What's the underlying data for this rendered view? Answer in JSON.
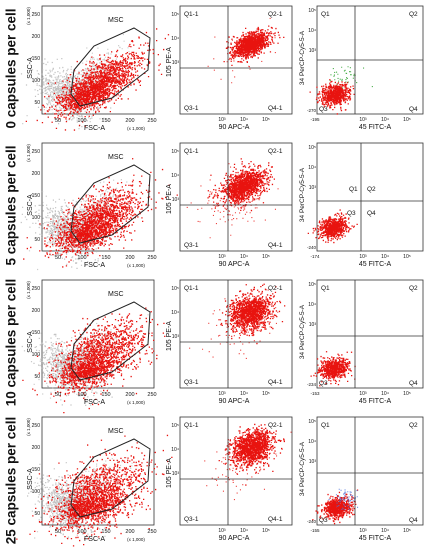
{
  "rows": [
    {
      "label": "0 capsules per cell"
    },
    {
      "label": "5 capsules per cell"
    },
    {
      "label": "10 capsules per cell"
    },
    {
      "label": "25 capsules per cell"
    }
  ],
  "msc_panel": {
    "gate_label": "MSC",
    "y_axis": "SSC-A",
    "x_axis": "FSC-A",
    "x_ticks": [
      "50",
      "100",
      "150",
      "200",
      "250"
    ],
    "y_ticks": [
      "50",
      "100",
      "150",
      "200",
      "250"
    ],
    "y_multiplier": "(x 1,000)",
    "x_multiplier": "(x 1,000)"
  },
  "pe_apc_panel": {
    "y_axis": "105 PE-A",
    "x_axis": "90 APC-A",
    "quadrants": [
      "Q1-1",
      "Q2-1",
      "Q3-1",
      "Q4-1"
    ],
    "x_ticks": [
      "10³",
      "10⁴",
      "10⁵"
    ],
    "y_ticks": [
      "10³",
      "10⁴",
      "10⁵"
    ]
  },
  "percp_fitc_panel": {
    "y_axis": "34 PerCP-Cy5-5-A",
    "x_axis": "45 FITC-A",
    "quadrants": [
      "Q1",
      "Q2",
      "Q3",
      "Q4"
    ],
    "x_ticks": [
      "10³",
      "10⁴",
      "10⁵"
    ],
    "y_ticks": [
      "10³",
      "10⁴",
      "10⁵"
    ],
    "x_min_labels": [
      "-195",
      "-174",
      "-153",
      "-155"
    ],
    "y_min_labels": [
      "-270",
      "-240",
      "-234",
      "-240"
    ]
  },
  "colors": {
    "events": "#e8130f",
    "background_events": "#b9b9b9",
    "gate": "#222222",
    "green_events": "#3aa63a"
  }
}
